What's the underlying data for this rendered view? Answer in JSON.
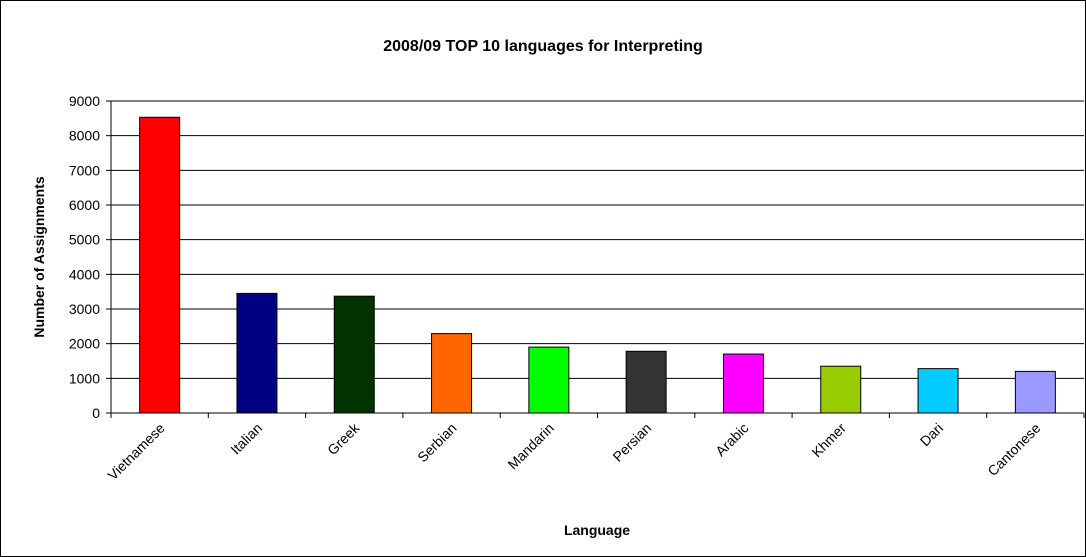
{
  "chart_data": {
    "type": "bar",
    "title": "2008/09 TOP 10 languages for Interpreting",
    "xlabel": "Language",
    "ylabel": "Number of Assignments",
    "ylim": [
      0,
      9000
    ],
    "y_ticks": [
      "0",
      "1000",
      "2000",
      "3000",
      "4000",
      "5000",
      "6000",
      "7000",
      "8000",
      "9000"
    ],
    "grid": true,
    "legend": "none",
    "categories": [
      "Vietnamese",
      "Italian",
      "Greek",
      "Serbian",
      "Mandarin",
      "Persian",
      "Arabic",
      "Khmer",
      "Dari",
      "Cantonese"
    ],
    "values": [
      8530,
      3450,
      3370,
      2290,
      1900,
      1780,
      1700,
      1350,
      1280,
      1200
    ],
    "colors": [
      "#ff0000",
      "#000080",
      "#003300",
      "#ff6600",
      "#00ff00",
      "#333333",
      "#ff00ff",
      "#99cc00",
      "#00ccff",
      "#9999ff"
    ]
  }
}
